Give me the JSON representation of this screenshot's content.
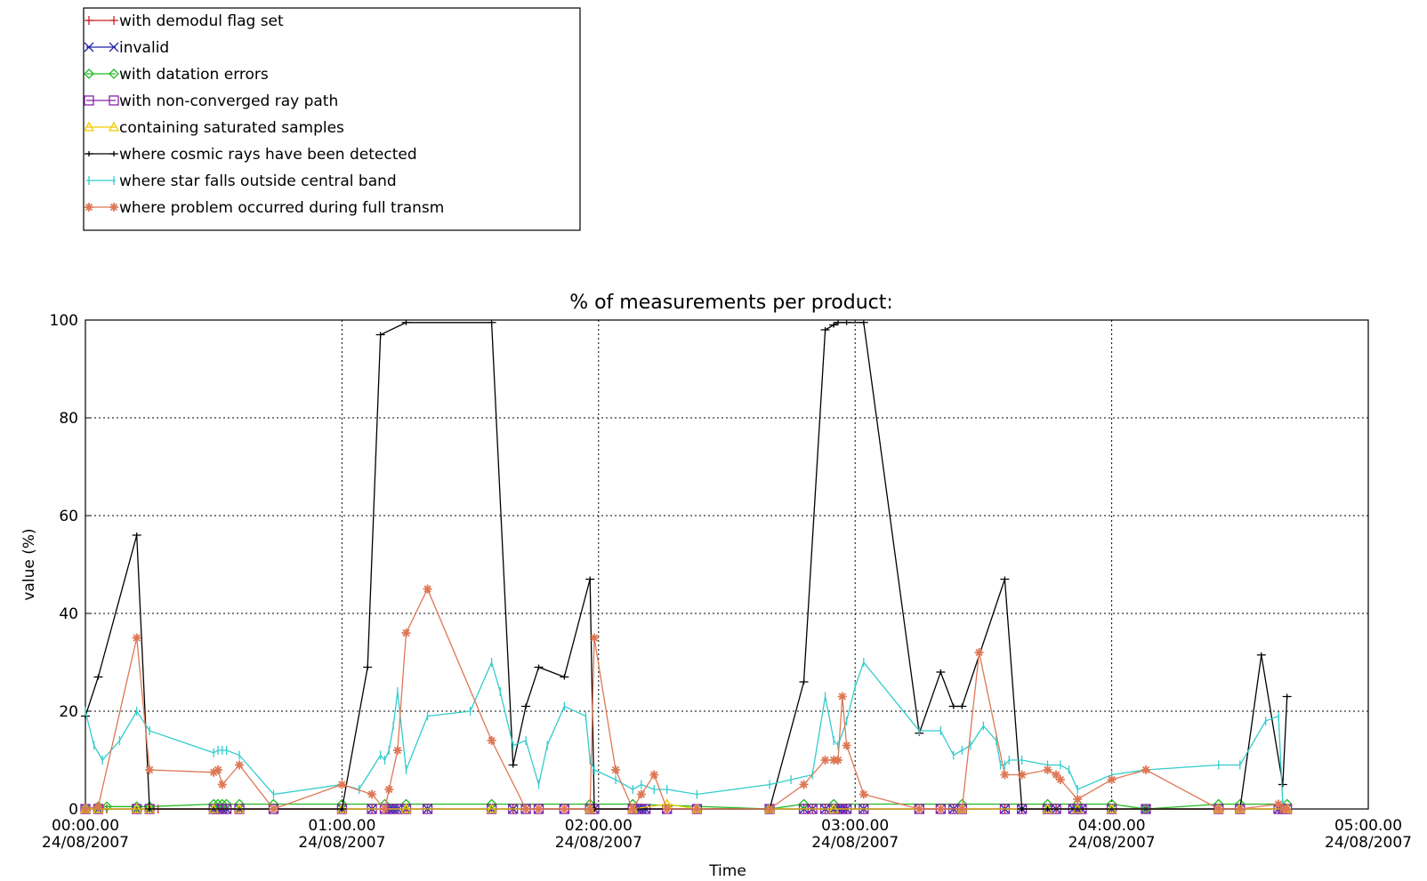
{
  "chart_data": {
    "type": "line",
    "title": "% of measurements per product:",
    "xlabel": "Time",
    "ylabel": "value (%)",
    "ylim": [
      0,
      100
    ],
    "xlim": [
      "00:00.00 24/08/2007",
      "05:00.00 24/08/2007"
    ],
    "grid": true,
    "legend_position": "top-left, above plot",
    "x_ticks": [
      {
        "time": "00:00.00",
        "date": "24/08/2007"
      },
      {
        "time": "01:00.00",
        "date": "24/08/2007"
      },
      {
        "time": "02:00.00",
        "date": "24/08/2007"
      },
      {
        "time": "03:00.00",
        "date": "24/08/2007"
      },
      {
        "time": "04:00.00",
        "date": "24/08/2007"
      },
      {
        "time": "05:00.00",
        "date": "24/08/2007"
      }
    ],
    "y_ticks": [
      "0",
      "20",
      "40",
      "60",
      "80",
      "100"
    ],
    "series": [
      {
        "name": "with demodul flag set",
        "color": "#cc2222",
        "marker": "plus",
        "x_minutes": [
          0,
          3,
          5,
          12,
          15,
          17,
          30,
          31,
          32,
          33,
          36,
          44,
          60,
          67,
          70,
          71,
          72,
          73,
          75,
          80,
          95,
          100,
          103,
          106,
          112,
          118,
          119,
          128,
          129,
          130,
          131,
          136,
          143,
          160,
          168,
          170,
          173,
          175,
          176,
          177,
          178,
          182,
          195,
          200,
          203,
          205,
          215,
          219,
          225,
          227,
          231,
          232,
          233,
          240,
          248,
          265,
          270,
          279,
          280,
          281
        ],
        "y": [
          0,
          0,
          0,
          0,
          0,
          0,
          0,
          0,
          0,
          0,
          0,
          0,
          0,
          0,
          0,
          0,
          0,
          0,
          0,
          0,
          0,
          0,
          0,
          0,
          0,
          0,
          0,
          0,
          0,
          0,
          0,
          0,
          0,
          0,
          0,
          0,
          0,
          0,
          0,
          0,
          0,
          0,
          0,
          0,
          0,
          0,
          0,
          0,
          0,
          0,
          0,
          0,
          0,
          0,
          0,
          0,
          0,
          0,
          0,
          0
        ]
      },
      {
        "name": "invalid",
        "color": "#2222aa",
        "marker": "x",
        "x_minutes": [
          0,
          3,
          12,
          15,
          30,
          31,
          32,
          33,
          36,
          44,
          60,
          67,
          70,
          71,
          72,
          73,
          75,
          80,
          95,
          100,
          103,
          106,
          112,
          118,
          119,
          128,
          129,
          130,
          131,
          136,
          143,
          160,
          168,
          170,
          173,
          175,
          176,
          177,
          178,
          182,
          195,
          200,
          203,
          205,
          215,
          219,
          225,
          227,
          231,
          232,
          233,
          240,
          248,
          265,
          270,
          279,
          280,
          281
        ],
        "y": [
          0,
          0,
          0,
          0,
          0,
          0,
          0,
          0,
          0,
          0,
          0,
          0,
          0,
          0,
          0,
          0,
          0,
          0,
          0,
          0,
          0,
          0,
          0,
          0,
          0,
          0,
          0,
          0,
          0,
          0,
          0,
          0,
          0,
          0,
          0,
          0,
          0,
          0,
          0,
          0,
          0,
          0,
          0,
          0,
          0,
          0,
          0,
          0,
          0,
          0,
          0,
          0,
          0,
          0,
          0,
          0,
          0,
          0
        ]
      },
      {
        "name": "with datation errors",
        "color": "#22bb22",
        "marker": "diamond",
        "x_minutes": [
          0,
          3,
          5,
          12,
          15,
          30,
          31,
          32,
          33,
          36,
          44,
          60,
          70,
          75,
          95,
          118,
          128,
          160,
          168,
          175,
          205,
          225,
          232,
          240,
          248,
          265,
          270,
          281
        ],
        "y": [
          0,
          0.5,
          0.5,
          0.5,
          0.5,
          1,
          1,
          1,
          1,
          1,
          1,
          1,
          1,
          1,
          1,
          1,
          1,
          0,
          1,
          1,
          1,
          1,
          1,
          1,
          0,
          1,
          1,
          1
        ]
      },
      {
        "name": "with non-converged ray path",
        "color": "#8822aa",
        "marker": "square",
        "x_minutes": [
          0,
          3,
          12,
          15,
          30,
          31,
          32,
          33,
          36,
          44,
          60,
          67,
          70,
          71,
          72,
          73,
          75,
          80,
          95,
          100,
          103,
          106,
          112,
          118,
          119,
          128,
          129,
          130,
          131,
          136,
          143,
          160,
          168,
          170,
          173,
          175,
          176,
          177,
          178,
          182,
          195,
          200,
          203,
          205,
          215,
          219,
          225,
          227,
          231,
          232,
          233,
          240,
          248,
          265,
          270,
          279,
          280,
          281
        ],
        "y": [
          0,
          0,
          0,
          0,
          0,
          0,
          0,
          0,
          0,
          0,
          0,
          0,
          0,
          0,
          0,
          0,
          0,
          0,
          0,
          0,
          0,
          0,
          0,
          0,
          0,
          0,
          0,
          0,
          0,
          0,
          0,
          0,
          0,
          0,
          0,
          0,
          0,
          0,
          0,
          0,
          0,
          0,
          0,
          0,
          0,
          0,
          0,
          0,
          0,
          0,
          0,
          0,
          0,
          0,
          0,
          0,
          0,
          0
        ]
      },
      {
        "name": "containing saturated samples",
        "color": "#eecc00",
        "marker": "triangle",
        "x_minutes": [
          0,
          3,
          12,
          15,
          30,
          36,
          60,
          75,
          95,
          118,
          128,
          136,
          143,
          160,
          175,
          205,
          225,
          232,
          240,
          265,
          270,
          281
        ],
        "y": [
          0,
          0,
          0,
          0,
          0,
          0,
          0,
          0,
          0,
          0,
          0,
          1,
          0,
          0,
          0,
          0,
          0,
          0,
          0,
          0,
          0,
          0
        ]
      },
      {
        "name": "where cosmic rays have been detected",
        "color": "#000000",
        "marker": "dash",
        "x_minutes": [
          0,
          3,
          12,
          15,
          60,
          66,
          69,
          75,
          95,
          100,
          103,
          106,
          112,
          118,
          119,
          160,
          168,
          173,
          175,
          176,
          178,
          182,
          195,
          200,
          203,
          205,
          215,
          219,
          225,
          270,
          275,
          280,
          281
        ],
        "y": [
          19,
          27,
          56,
          0,
          0,
          29,
          97,
          99.5,
          99.5,
          9,
          21,
          29,
          27,
          47,
          0,
          0,
          26,
          98,
          99,
          99.5,
          99.5,
          99.5,
          15.5,
          28,
          21,
          21,
          47,
          0,
          0,
          0,
          31.5,
          5,
          23
        ]
      },
      {
        "name": "where star falls outside central band",
        "color": "#33cccc",
        "marker": "vbar",
        "x_minutes": [
          0,
          2,
          4,
          8,
          12,
          15,
          30,
          31,
          32,
          33,
          36,
          44,
          60,
          64,
          69,
          70,
          71,
          72,
          73,
          75,
          80,
          90,
          95,
          97,
          100,
          103,
          106,
          108,
          112,
          117,
          118,
          119,
          124,
          128,
          130,
          133,
          136,
          143,
          160,
          165,
          170,
          173,
          175,
          176,
          178,
          180,
          182,
          195,
          200,
          203,
          205,
          207,
          210,
          213,
          214,
          215,
          216,
          219,
          225,
          228,
          230,
          232,
          240,
          248,
          265,
          270,
          276,
          279,
          280
        ],
        "y": [
          20,
          13,
          10,
          14,
          20,
          16,
          11.5,
          12,
          12,
          12,
          11,
          3,
          5,
          4,
          11,
          10,
          12,
          17,
          24,
          8,
          19,
          20,
          30,
          24,
          13,
          14,
          5,
          13,
          21,
          19,
          10,
          8,
          6,
          4,
          5,
          4,
          4,
          3,
          5,
          6,
          7,
          23,
          14,
          13,
          18,
          25,
          30,
          16,
          16,
          11,
          12,
          13,
          17,
          14,
          9,
          9,
          10,
          10,
          9,
          9,
          8,
          4,
          7,
          8,
          9,
          9,
          18,
          19,
          1
        ]
      },
      {
        "name": "where problem occurred during full transm",
        "color": "#dd7755",
        "marker": "asterisk",
        "x_minutes": [
          0,
          3,
          12,
          15,
          30,
          31,
          32,
          36,
          44,
          60,
          67,
          70,
          71,
          73,
          75,
          80,
          95,
          103,
          106,
          112,
          118,
          119,
          124,
          128,
          130,
          133,
          136,
          143,
          160,
          168,
          173,
          175,
          176,
          177,
          178,
          182,
          195,
          200,
          205,
          209,
          215,
          219,
          225,
          227,
          228,
          232,
          240,
          248,
          265,
          270,
          279,
          280,
          281
        ],
        "y": [
          0,
          0.5,
          35,
          8,
          7.5,
          8,
          5,
          9,
          0,
          5,
          3,
          0,
          4,
          12,
          36,
          45,
          14,
          0,
          0,
          0,
          0,
          35,
          8,
          0,
          3,
          7,
          0,
          0,
          0,
          5,
          10,
          10,
          10,
          23,
          13,
          3,
          0,
          0,
          0,
          32,
          7,
          7,
          8,
          7,
          6,
          2,
          6,
          8,
          0,
          0,
          1,
          0,
          0
        ]
      }
    ]
  }
}
